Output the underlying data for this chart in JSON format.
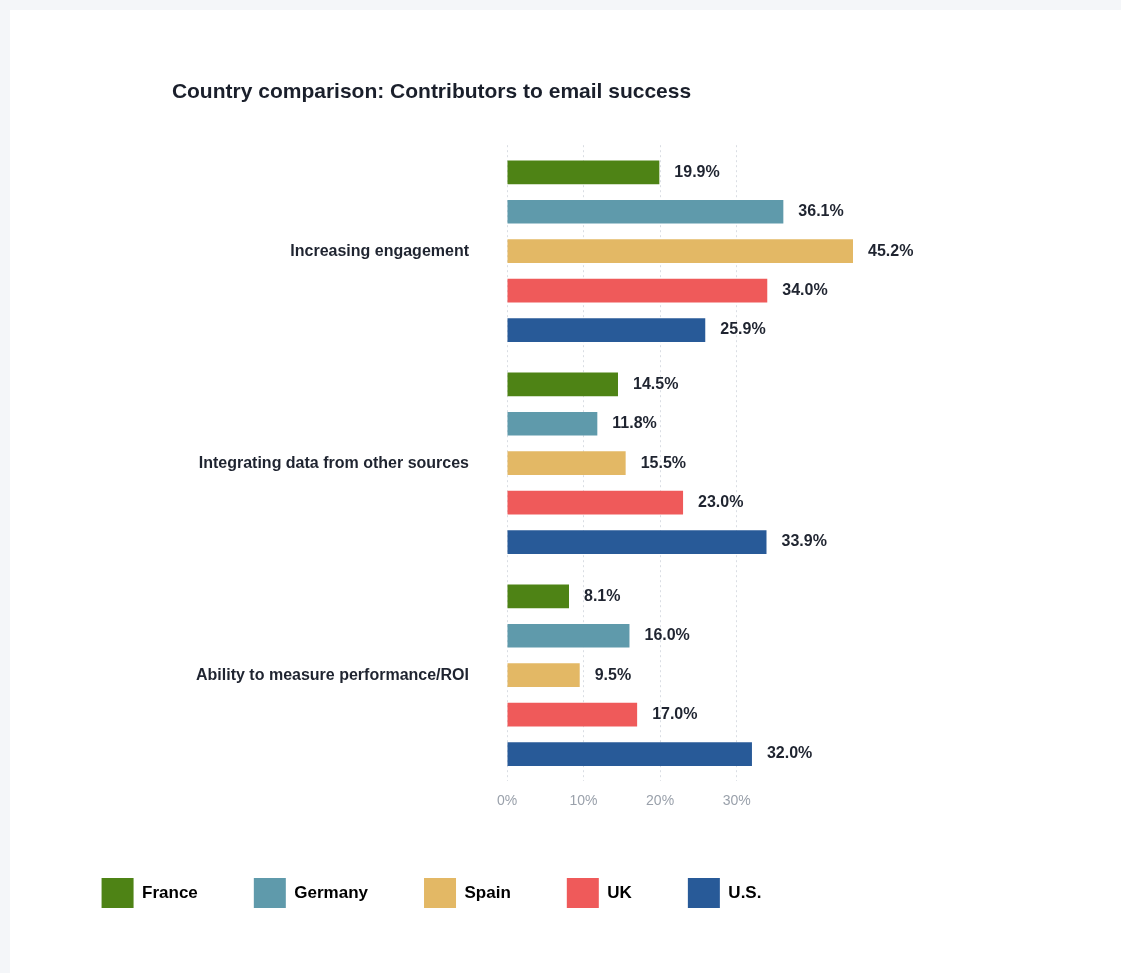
{
  "chart_data": {
    "type": "bar",
    "orientation": "horizontal",
    "title": "Country comparison: Contributors to email success",
    "categories": [
      "Increasing engagement",
      "Integrating data from other sources",
      "Ability to measure performance/ROI"
    ],
    "series": [
      {
        "name": "France",
        "color": "#4e8315",
        "values": [
          19.9,
          14.5,
          8.1
        ]
      },
      {
        "name": "Germany",
        "color": "#5f9aab",
        "values": [
          36.1,
          11.8,
          16.0
        ]
      },
      {
        "name": "Spain",
        "color": "#e3b865",
        "values": [
          45.2,
          15.5,
          9.5
        ]
      },
      {
        "name": "UK",
        "color": "#ef5a5a",
        "values": [
          34.0,
          23.0,
          17.0
        ]
      },
      {
        "name": "U.S.",
        "color": "#285a98",
        "values": [
          25.9,
          33.9,
          32.0
        ]
      }
    ],
    "xlim": [
      0,
      45.2
    ],
    "xticks": [
      {
        "value": 0,
        "label": "0%"
      },
      {
        "value": 10,
        "label": "10%"
      },
      {
        "value": 20,
        "label": "20%"
      },
      {
        "value": 30,
        "label": "30%"
      }
    ],
    "value_labels": [
      [
        "19.9%",
        "14.5%",
        "8.1%"
      ],
      [
        "36.1%",
        "11.8%",
        "16.0%"
      ],
      [
        "45.2%",
        "15.5%",
        "9.5%"
      ],
      [
        "34.0%",
        "23.0%",
        "17.0%"
      ],
      [
        "25.9%",
        "33.9%",
        "32.0%"
      ]
    ],
    "grid": "x",
    "legend": "bottom"
  }
}
